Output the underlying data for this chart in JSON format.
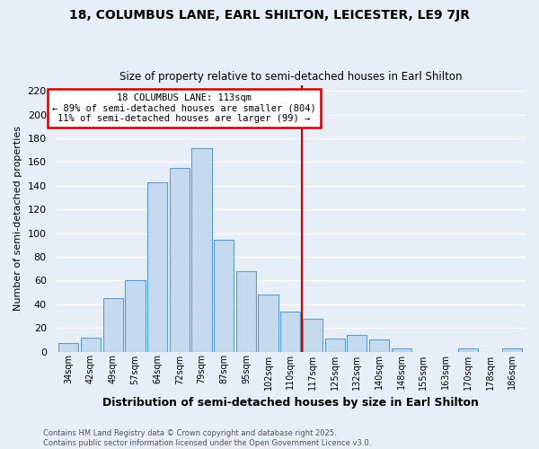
{
  "title": "18, COLUMBUS LANE, EARL SHILTON, LEICESTER, LE9 7JR",
  "subtitle": "Size of property relative to semi-detached houses in Earl Shilton",
  "xlabel": "Distribution of semi-detached houses by size in Earl Shilton",
  "ylabel": "Number of semi-detached properties",
  "bar_labels": [
    "34sqm",
    "42sqm",
    "49sqm",
    "57sqm",
    "64sqm",
    "72sqm",
    "79sqm",
    "87sqm",
    "95sqm",
    "102sqm",
    "110sqm",
    "117sqm",
    "125sqm",
    "132sqm",
    "140sqm",
    "148sqm",
    "155sqm",
    "163sqm",
    "170sqm",
    "178sqm",
    "186sqm"
  ],
  "bar_values": [
    7,
    12,
    45,
    60,
    143,
    155,
    172,
    94,
    68,
    48,
    34,
    28,
    11,
    14,
    10,
    3,
    0,
    0,
    3,
    0,
    3
  ],
  "bar_color": "#c5d9ef",
  "bar_edge_color": "#5a9fd4",
  "vline_x_idx": 10,
  "vline_color": "#cc0000",
  "annotation_title": "18 COLUMBUS LANE: 113sqm",
  "annotation_line1": "← 89% of semi-detached houses are smaller (804)",
  "annotation_line2": "11% of semi-detached houses are larger (99) →",
  "annotation_box_color": "#ffffff",
  "annotation_border_color": "#cc0000",
  "ylim": [
    0,
    225
  ],
  "yticks": [
    0,
    20,
    40,
    60,
    80,
    100,
    120,
    140,
    160,
    180,
    200,
    220
  ],
  "footer_line1": "Contains HM Land Registry data © Crown copyright and database right 2025.",
  "footer_line2": "Contains public sector information licensed under the Open Government Licence v3.0.",
  "bg_color": "#e8eef8",
  "grid_color": "#ffffff"
}
